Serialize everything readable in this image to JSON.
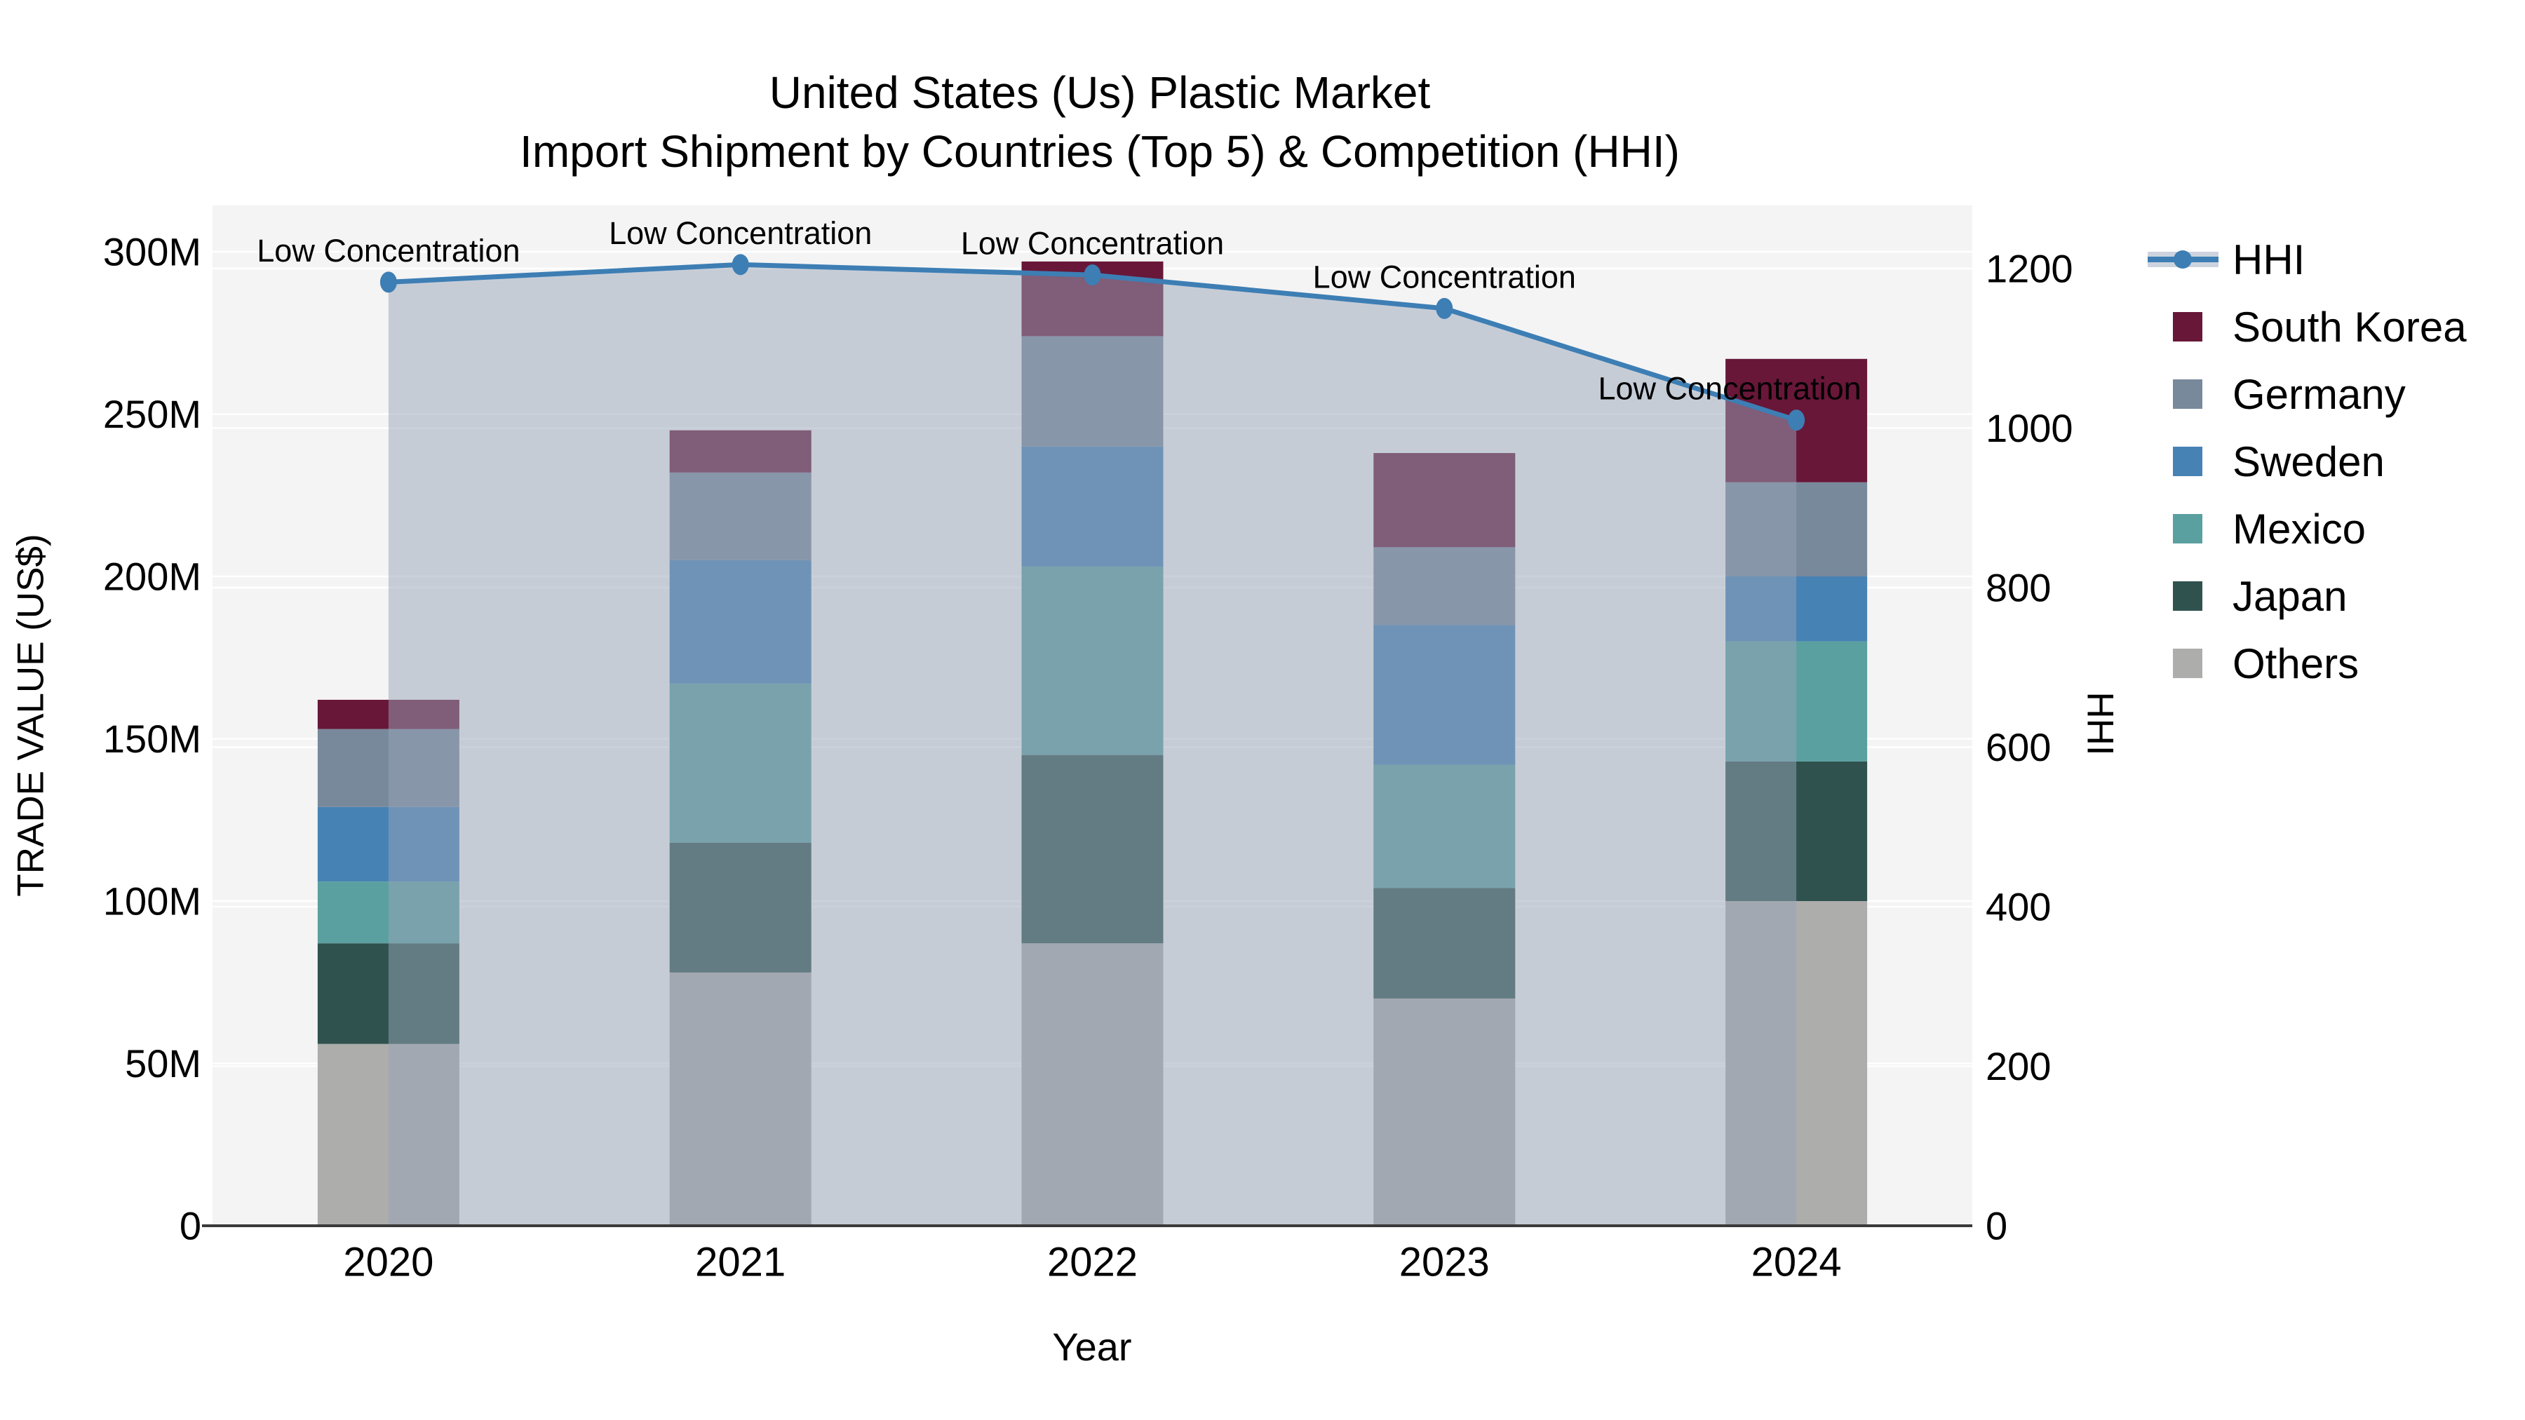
{
  "title": {
    "line1": "United States (Us) Plastic Market",
    "line2": "Import Shipment by Countries (Top 5) & Competition (HHI)"
  },
  "chart_data": {
    "type": "combo: stacked-bar (left axis) + line with area fill (right axis)",
    "categories": [
      "2020",
      "2021",
      "2022",
      "2023",
      "2024"
    ],
    "unit": "US$ millions",
    "bar_series": [
      {
        "name": "Others",
        "color": "#adadab",
        "values": [
          56,
          78,
          87,
          70,
          100
        ]
      },
      {
        "name": "Japan",
        "color": "#2f524e",
        "values": [
          31,
          40,
          58,
          34,
          43
        ]
      },
      {
        "name": "Mexico",
        "color": "#5ba0a0",
        "values": [
          19,
          49,
          58,
          38,
          37
        ]
      },
      {
        "name": "Sweden",
        "color": "#4682b4",
        "values": [
          23,
          38,
          37,
          43,
          20
        ]
      },
      {
        "name": "Germany",
        "color": "#78899c",
        "values": [
          24,
          27,
          34,
          24,
          29
        ]
      },
      {
        "name": "South Korea",
        "color": "#681738",
        "values": [
          9,
          13,
          23,
          29,
          38
        ]
      }
    ],
    "bar_totals": [
      162,
      245,
      297,
      238,
      267
    ],
    "line_series": {
      "name": "HHI",
      "color": "#3d7eb4",
      "values": [
        1183,
        1205,
        1192,
        1150,
        1010
      ]
    },
    "area_fill": {
      "color": "#97a3b7",
      "opacity": 0.5
    },
    "annotations": [
      "Low Concentration",
      "Low Concentration",
      "Low Concentration",
      "Low Concentration",
      "Low Concentration"
    ],
    "xlabel": "Year",
    "ylabel_left": "TRADE VALUE (US$)",
    "ylabel_right": "HHI",
    "left_axis": {
      "ticks": [
        "0",
        "50M",
        "100M",
        "150M",
        "200M",
        "250M",
        "300M"
      ],
      "tick_values": [
        0,
        50,
        100,
        150,
        200,
        250,
        300
      ],
      "max_tick": 300
    },
    "right_axis": {
      "ticks": [
        "0",
        "200",
        "400",
        "600",
        "800",
        "1000",
        "1200"
      ],
      "tick_values": [
        0,
        200,
        400,
        600,
        800,
        1000,
        1200
      ],
      "max_tick": 1200
    },
    "grid": "on",
    "legend_position": "right",
    "plot_bg": "#f4f4f4",
    "grid_color": "#ffffff",
    "axis_line_color": "#3a3a3a",
    "text_color": "#000000"
  },
  "legend": {
    "items": [
      {
        "label": "HHI",
        "type": "line",
        "color": "#3d7eb4",
        "band_color": "#ccd3de"
      },
      {
        "label": "South Korea",
        "type": "swatch",
        "color": "#681738"
      },
      {
        "label": "Germany",
        "type": "swatch",
        "color": "#78899c"
      },
      {
        "label": "Sweden",
        "type": "swatch",
        "color": "#4682b4"
      },
      {
        "label": "Mexico",
        "type": "swatch",
        "color": "#5ba0a0"
      },
      {
        "label": "Japan",
        "type": "swatch",
        "color": "#2f524e"
      },
      {
        "label": "Others",
        "type": "swatch",
        "color": "#adadab"
      }
    ]
  }
}
